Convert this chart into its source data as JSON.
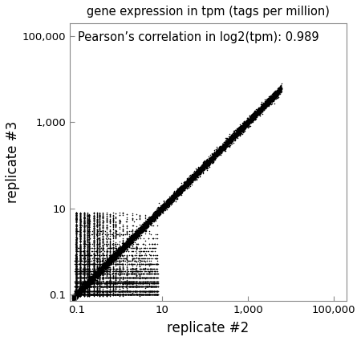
{
  "title": "gene expression in tpm (tags per million)",
  "xlabel": "replicate #2",
  "ylabel": "replicate #3",
  "annotation": "Pearson’s correlation in log2(tpm): 0.989",
  "xlim": [
    0.07,
    200000
  ],
  "ylim": [
    0.07,
    200000
  ],
  "xticks": [
    0.1,
    10,
    1000,
    100000
  ],
  "yticks": [
    0.1,
    10,
    1000,
    100000
  ],
  "xticklabels": [
    "0.1",
    "10",
    "1,000",
    "100,000"
  ],
  "yticklabels": [
    "0.1",
    "10",
    "1,000",
    "100,000"
  ],
  "point_color": "#000000",
  "point_size": 1.2,
  "background_color": "#ffffff",
  "seed": 42,
  "title_fontsize": 10.5,
  "label_fontsize": 12,
  "annotation_fontsize": 10.5
}
